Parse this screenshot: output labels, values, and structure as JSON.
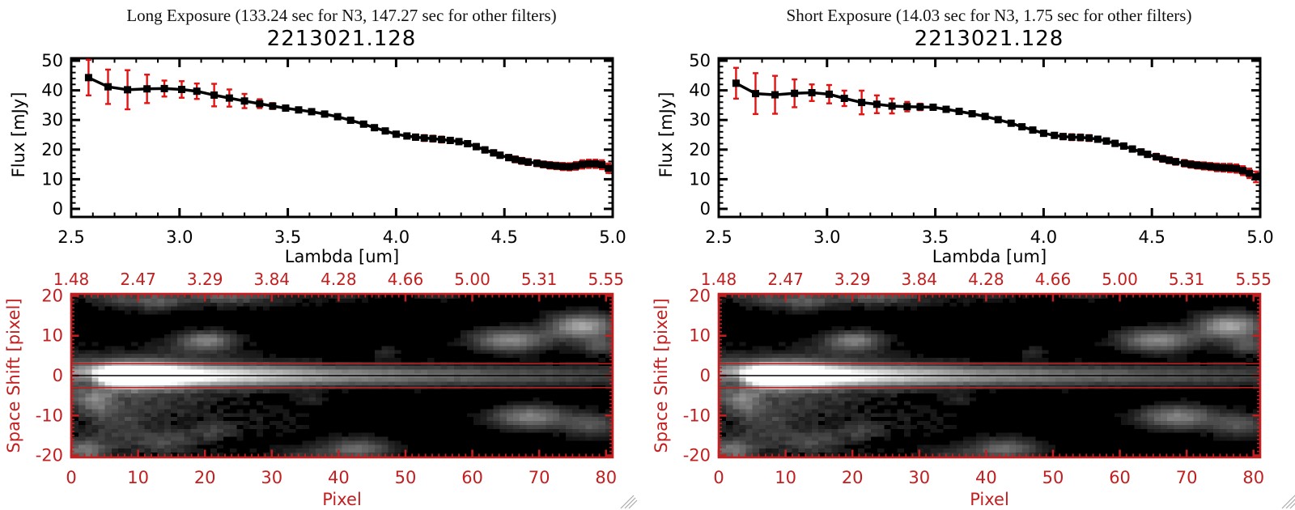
{
  "panels": [
    {
      "title": "Long Exposure (133.24 sec for N3, 147.27 sec for other filters)",
      "target_id": "2213021.128"
    },
    {
      "title": "Short Exposure (14.03 sec for N3, 1.75 sec for other filters)",
      "target_id": "2213021.128"
    }
  ],
  "colors": {
    "axis_black": "#000000",
    "error_bar_red": "#e31313",
    "frame_red": "#c22020",
    "label_red": "#c22020",
    "background": "#ffffff",
    "grip_gray": "#aaaaaa"
  },
  "chart_data": [
    {
      "type": "line",
      "title": "2213021.128",
      "panel": "Long Exposure",
      "xlabel": "Lambda [um]",
      "ylabel": "Flux [mJy]",
      "xlim": [
        2.5,
        5.0
      ],
      "ylim": [
        0,
        50
      ],
      "x_tick_labels": [
        "2.5",
        "3.0",
        "3.5",
        "4.0",
        "4.5",
        "5.0"
      ],
      "x_tick_values": [
        2.5,
        3.0,
        3.5,
        4.0,
        4.5,
        5.0
      ],
      "y_tick_labels": [
        "0",
        "10",
        "20",
        "30",
        "40",
        "50"
      ],
      "y_tick_values": [
        0,
        10,
        20,
        30,
        40,
        50
      ],
      "grid": false,
      "marker": "filled-square",
      "error_bars": true,
      "points_lambda_flux_err": [
        [
          2.58,
          44.3,
          6.0
        ],
        [
          2.67,
          41.2,
          5.8
        ],
        [
          2.76,
          40.2,
          6.6
        ],
        [
          2.85,
          40.5,
          4.8
        ],
        [
          2.93,
          40.6,
          2.7
        ],
        [
          3.01,
          40.3,
          2.8
        ],
        [
          3.08,
          39.7,
          2.6
        ],
        [
          3.16,
          38.4,
          3.8
        ],
        [
          3.23,
          37.4,
          2.9
        ],
        [
          3.3,
          36.4,
          2.4
        ],
        [
          3.37,
          35.5,
          1.5
        ],
        [
          3.43,
          34.7,
          1.0
        ],
        [
          3.49,
          34.0,
          0.7
        ],
        [
          3.55,
          33.4,
          0.8
        ],
        [
          3.61,
          32.8,
          0.7
        ],
        [
          3.67,
          32.0,
          0.7
        ],
        [
          3.73,
          31.1,
          0.7
        ],
        [
          3.79,
          29.9,
          0.7
        ],
        [
          3.85,
          28.6,
          0.7
        ],
        [
          3.9,
          27.4,
          0.7
        ],
        [
          3.95,
          26.3,
          0.7
        ],
        [
          4.0,
          25.2,
          0.8
        ],
        [
          4.05,
          24.6,
          0.8
        ],
        [
          4.09,
          24.2,
          0.9
        ],
        [
          4.13,
          23.9,
          1.0
        ],
        [
          4.17,
          23.7,
          1.0
        ],
        [
          4.21,
          23.4,
          1.0
        ],
        [
          4.25,
          23.1,
          0.9
        ],
        [
          4.29,
          22.7,
          0.9
        ],
        [
          4.33,
          22.0,
          0.9
        ],
        [
          4.37,
          21.0,
          0.9
        ],
        [
          4.41,
          19.9,
          0.9
        ],
        [
          4.45,
          18.9,
          0.9
        ],
        [
          4.48,
          18.1,
          0.9
        ],
        [
          4.52,
          17.3,
          0.9
        ],
        [
          4.55,
          16.7,
          1.0
        ],
        [
          4.58,
          16.2,
          1.0
        ],
        [
          4.61,
          15.8,
          1.0
        ],
        [
          4.65,
          15.4,
          1.0
        ],
        [
          4.68,
          15.0,
          1.0
        ],
        [
          4.71,
          14.7,
          1.1
        ],
        [
          4.74,
          14.5,
          1.1
        ],
        [
          4.77,
          14.3,
          1.2
        ],
        [
          4.8,
          14.2,
          1.2
        ],
        [
          4.83,
          14.5,
          1.3
        ],
        [
          4.86,
          15.0,
          1.4
        ],
        [
          4.89,
          15.2,
          1.4
        ],
        [
          4.92,
          15.2,
          1.4
        ],
        [
          4.95,
          14.9,
          1.5
        ],
        [
          4.98,
          13.7,
          1.6
        ]
      ]
    },
    {
      "type": "line",
      "title": "2213021.128",
      "panel": "Short Exposure",
      "xlabel": "Lambda [um]",
      "ylabel": "Flux [mJy]",
      "xlim": [
        2.5,
        5.0
      ],
      "ylim": [
        0,
        50
      ],
      "x_tick_labels": [
        "2.5",
        "3.0",
        "3.5",
        "4.0",
        "4.5",
        "5.0"
      ],
      "x_tick_values": [
        2.5,
        3.0,
        3.5,
        4.0,
        4.5,
        5.0
      ],
      "y_tick_labels": [
        "0",
        "10",
        "20",
        "30",
        "40",
        "50"
      ],
      "y_tick_values": [
        0,
        10,
        20,
        30,
        40,
        50
      ],
      "grid": false,
      "marker": "filled-square",
      "error_bars": true,
      "points_lambda_flux_err": [
        [
          2.58,
          42.4,
          5.2
        ],
        [
          2.67,
          38.9,
          6.9
        ],
        [
          2.76,
          38.5,
          6.4
        ],
        [
          2.85,
          39.0,
          4.7
        ],
        [
          2.93,
          39.2,
          2.8
        ],
        [
          3.01,
          38.7,
          3.1
        ],
        [
          3.08,
          37.3,
          2.6
        ],
        [
          3.16,
          35.9,
          4.0
        ],
        [
          3.23,
          35.3,
          3.0
        ],
        [
          3.3,
          34.7,
          2.5
        ],
        [
          3.37,
          34.5,
          1.6
        ],
        [
          3.43,
          34.4,
          1.1
        ],
        [
          3.49,
          34.3,
          0.8
        ],
        [
          3.55,
          33.6,
          0.8
        ],
        [
          3.61,
          32.9,
          0.7
        ],
        [
          3.67,
          32.1,
          0.7
        ],
        [
          3.73,
          31.2,
          0.7
        ],
        [
          3.79,
          30.1,
          0.7
        ],
        [
          3.85,
          28.9,
          0.7
        ],
        [
          3.9,
          27.7,
          0.7
        ],
        [
          3.95,
          26.6,
          0.7
        ],
        [
          4.0,
          25.5,
          0.8
        ],
        [
          4.05,
          24.8,
          0.8
        ],
        [
          4.09,
          24.4,
          0.9
        ],
        [
          4.13,
          24.2,
          1.0
        ],
        [
          4.17,
          24.1,
          1.0
        ],
        [
          4.21,
          23.9,
          1.0
        ],
        [
          4.25,
          23.5,
          0.9
        ],
        [
          4.29,
          22.9,
          0.9
        ],
        [
          4.33,
          22.1,
          0.9
        ],
        [
          4.37,
          21.2,
          0.9
        ],
        [
          4.41,
          20.2,
          0.9
        ],
        [
          4.45,
          19.2,
          0.9
        ],
        [
          4.48,
          18.4,
          0.9
        ],
        [
          4.52,
          17.6,
          1.0
        ],
        [
          4.55,
          16.9,
          1.0
        ],
        [
          4.58,
          16.4,
          1.0
        ],
        [
          4.61,
          15.9,
          1.0
        ],
        [
          4.65,
          15.4,
          1.1
        ],
        [
          4.68,
          15.0,
          1.1
        ],
        [
          4.71,
          14.7,
          1.1
        ],
        [
          4.74,
          14.5,
          1.2
        ],
        [
          4.77,
          14.3,
          1.2
        ],
        [
          4.8,
          14.0,
          1.3
        ],
        [
          4.83,
          13.9,
          1.3
        ],
        [
          4.86,
          13.8,
          1.4
        ],
        [
          4.89,
          13.6,
          1.4
        ],
        [
          4.92,
          12.9,
          1.5
        ],
        [
          4.95,
          12.0,
          1.6
        ],
        [
          4.98,
          10.8,
          1.8
        ]
      ]
    },
    {
      "type": "heatmap",
      "panel": "Long Exposure",
      "xlabel": "Pixel",
      "ylabel": "Space Shift [pixel]",
      "xlim": [
        0,
        81
      ],
      "ylim": [
        -20.5,
        20.5
      ],
      "x_tick_labels": [
        "0",
        "10",
        "20",
        "30",
        "40",
        "50",
        "60",
        "70",
        "80"
      ],
      "x_tick_values": [
        0,
        10,
        20,
        30,
        40,
        50,
        60,
        70,
        80
      ],
      "y_tick_labels": [
        "20",
        "10",
        "0",
        "-10",
        "-20"
      ],
      "y_tick_values": [
        20,
        10,
        0,
        -10,
        -20
      ],
      "top_axis_labels": [
        "1.48",
        "2.47",
        "3.29",
        "3.84",
        "4.28",
        "4.66",
        "5.00",
        "5.31",
        "5.55"
      ],
      "overlay_lines": {
        "red_y": [
          3,
          -3
        ],
        "black_y": [
          0
        ]
      },
      "colormap": "grayscale",
      "features": {
        "band": {
          "center_y": 0,
          "sigma": 1.8,
          "peak_x_range": [
            6,
            13
          ],
          "decay_scale": 46,
          "halo_sigma": 3.8,
          "halo_amp": 0.32,
          "halo_extent_x": 40
        },
        "blobs_x_y_sx_sy_amp": [
          [
            9,
            0,
            5,
            2.0,
            0.9
          ],
          [
            2,
            -1.5,
            2.2,
            1.3,
            -0.32
          ],
          [
            20,
            9,
            2.8,
            1.6,
            0.42
          ],
          [
            12,
            19,
            3.5,
            1.8,
            0.3
          ],
          [
            23,
            20.5,
            4,
            1.5,
            0.26
          ],
          [
            5,
            20,
            2.5,
            1.5,
            0.2
          ],
          [
            18,
            7,
            5,
            2,
            0.1
          ],
          [
            28,
            19.5,
            8,
            1.8,
            0.1
          ],
          [
            66,
            9,
            4,
            2,
            0.5
          ],
          [
            77,
            12.5,
            3.5,
            2.2,
            0.62
          ],
          [
            80,
            7.5,
            2.5,
            1.5,
            0.28
          ],
          [
            69,
            -10.5,
            4,
            2,
            0.48
          ],
          [
            78.5,
            -12.5,
            3,
            2,
            0.3
          ],
          [
            43,
            -18.5,
            3.5,
            1.8,
            0.38
          ],
          [
            3,
            -6.5,
            2.2,
            2,
            0.34
          ],
          [
            1.5,
            -19,
            2.2,
            1.8,
            0.4
          ],
          [
            21,
            -14,
            2.2,
            1.6,
            0.2
          ],
          [
            6,
            -12,
            3,
            2.5,
            0.18
          ],
          [
            35,
            -20,
            4,
            1.5,
            0.16
          ],
          [
            14,
            -16.5,
            3,
            2,
            0.18
          ],
          [
            10,
            -8,
            8,
            3,
            0.14
          ],
          [
            8,
            -17,
            7,
            2.5,
            0.12
          ],
          [
            30,
            -12,
            6,
            3,
            0.07
          ],
          [
            47,
            6,
            1.6,
            1,
            0.13
          ],
          [
            36,
            -6,
            1.6,
            1,
            0.12
          ],
          [
            55,
            20.5,
            3,
            1,
            0.14
          ],
          [
            42,
            20.5,
            3,
            1,
            0.1
          ]
        ],
        "noise_seed": 1234
      }
    },
    {
      "type": "heatmap",
      "panel": "Short Exposure",
      "xlabel": "Pixel",
      "ylabel": "Space Shift [pixel]",
      "xlim": [
        0,
        81
      ],
      "ylim": [
        -20.5,
        20.5
      ],
      "x_tick_labels": [
        "0",
        "10",
        "20",
        "30",
        "40",
        "50",
        "60",
        "70",
        "80"
      ],
      "x_tick_values": [
        0,
        10,
        20,
        30,
        40,
        50,
        60,
        70,
        80
      ],
      "y_tick_labels": [
        "20",
        "10",
        "0",
        "-10",
        "-20"
      ],
      "y_tick_values": [
        20,
        10,
        0,
        -10,
        -20
      ],
      "top_axis_labels": [
        "1.48",
        "2.47",
        "3.29",
        "3.84",
        "4.28",
        "4.66",
        "5.00",
        "5.31",
        "5.55"
      ],
      "overlay_lines": {
        "red_y": [
          3,
          -3
        ],
        "black_y": [
          0
        ]
      },
      "colormap": "grayscale",
      "features": {
        "band": {
          "center_y": 0,
          "sigma": 1.8,
          "peak_x_range": [
            6,
            13
          ],
          "decay_scale": 46,
          "halo_sigma": 3.8,
          "halo_amp": 0.32,
          "halo_extent_x": 40
        },
        "blobs_x_y_sx_sy_amp": [
          [
            9,
            0,
            5,
            2.0,
            0.9
          ],
          [
            2,
            -1.5,
            2.2,
            1.3,
            -0.32
          ],
          [
            20,
            9,
            2.8,
            1.6,
            0.42
          ],
          [
            12,
            19,
            3.5,
            1.8,
            0.3
          ],
          [
            23,
            20.5,
            4,
            1.5,
            0.26
          ],
          [
            5,
            20,
            2.5,
            1.5,
            0.2
          ],
          [
            18,
            7,
            5,
            2,
            0.1
          ],
          [
            28,
            19.5,
            8,
            1.8,
            0.1
          ],
          [
            66,
            9,
            4,
            2,
            0.5
          ],
          [
            77,
            12.5,
            3.5,
            2.2,
            0.62
          ],
          [
            80,
            7.5,
            2.5,
            1.5,
            0.28
          ],
          [
            69,
            -10.5,
            4,
            2,
            0.48
          ],
          [
            78.5,
            -12.5,
            3,
            2,
            0.3
          ],
          [
            43,
            -18.5,
            3.5,
            1.8,
            0.38
          ],
          [
            3,
            -6.5,
            2.2,
            2,
            0.34
          ],
          [
            1.5,
            -19,
            2.2,
            1.8,
            0.4
          ],
          [
            21,
            -14,
            2.2,
            1.6,
            0.2
          ],
          [
            6,
            -12,
            3,
            2.5,
            0.18
          ],
          [
            35,
            -20,
            4,
            1.5,
            0.16
          ],
          [
            14,
            -16.5,
            3,
            2,
            0.18
          ],
          [
            10,
            -8,
            8,
            3,
            0.14
          ],
          [
            8,
            -17,
            7,
            2.5,
            0.12
          ],
          [
            30,
            -12,
            6,
            3,
            0.07
          ],
          [
            47,
            6,
            1.6,
            1,
            0.13
          ],
          [
            36,
            -6,
            1.6,
            1,
            0.12
          ],
          [
            55,
            20.5,
            3,
            1,
            0.14
          ],
          [
            42,
            20.5,
            3,
            1,
            0.1
          ]
        ],
        "noise_seed": 1234
      }
    }
  ]
}
